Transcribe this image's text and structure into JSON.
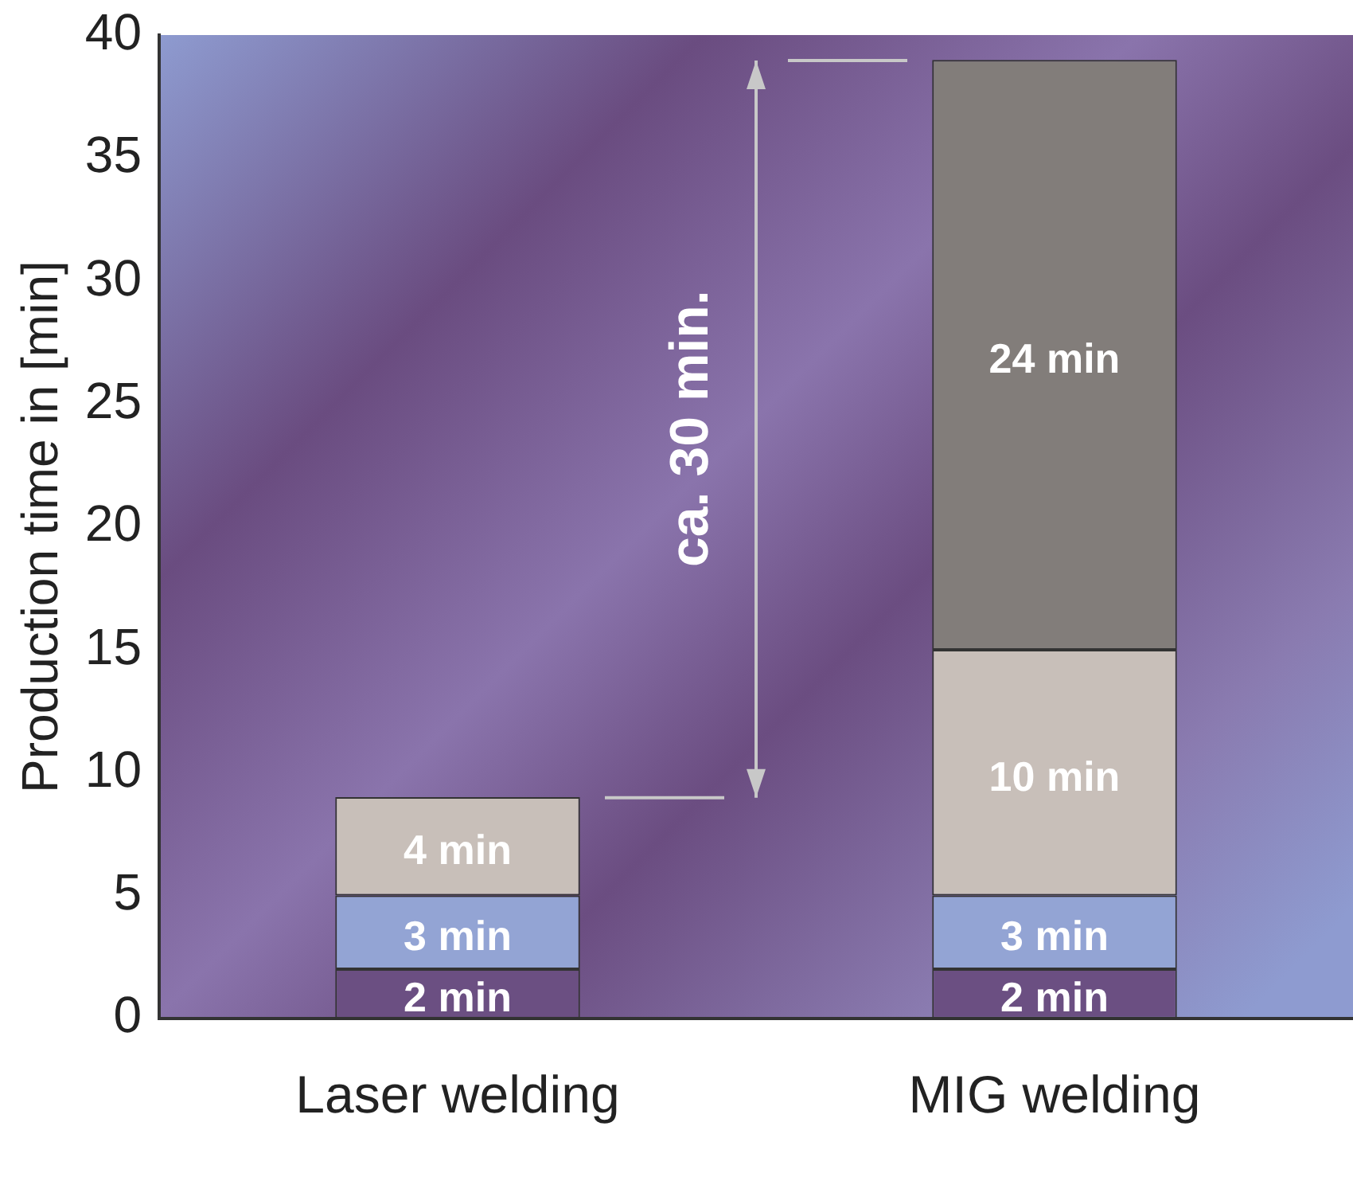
{
  "chart_data": {
    "type": "bar",
    "stacked": true,
    "ylabel": "Production time in [min]",
    "categories": [
      "Laser welding",
      "MIG welding"
    ],
    "series": [
      {
        "color": "#6b4f82",
        "values": [
          2,
          2
        ],
        "value_labels": [
          "2 min",
          "2 min"
        ]
      },
      {
        "color": "#93a4d4",
        "values": [
          3,
          3
        ],
        "value_labels": [
          "3 min",
          "3 min"
        ]
      },
      {
        "color": "#c8bfb9",
        "values": [
          4,
          10
        ],
        "value_labels": [
          "4 min",
          "10 min"
        ]
      },
      {
        "color": "#827d7a",
        "values": [
          null,
          24
        ],
        "value_labels": [
          null,
          "24 min"
        ]
      }
    ],
    "ylim": [
      0,
      40
    ],
    "yticks": [
      0,
      5,
      10,
      15,
      20,
      25,
      30,
      35,
      40
    ],
    "grid": false,
    "legend": false,
    "annotations": [
      "ca. 30 min."
    ]
  }
}
